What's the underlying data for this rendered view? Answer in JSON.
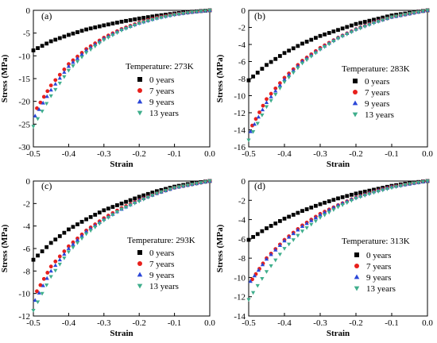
{
  "chart_data": [
    {
      "type": "scatter",
      "panel_label": "(a)",
      "annotation": "Temperature: 273K",
      "xlabel": "Strain",
      "ylabel": "Stress (MPa)",
      "xlim": [
        -0.5,
        0.0
      ],
      "ylim": [
        -30,
        0
      ],
      "xticks": [
        "-0.5",
        "-0.4",
        "-0.3",
        "-0.2",
        "-0.1",
        "0.0"
      ],
      "yticks": [
        "0",
        "-5",
        "-10",
        "-15",
        "-20",
        "-25",
        "-30"
      ],
      "series": [
        {
          "name": "0 years",
          "marker": "square",
          "color": "#000000",
          "x": [
            -0.5,
            -0.45,
            -0.4,
            -0.35,
            -0.3,
            -0.25,
            -0.2,
            -0.15,
            -0.1,
            -0.05,
            0.0
          ],
          "y": [
            -8.8,
            -6.8,
            -5.4,
            -4.2,
            -3.3,
            -2.5,
            -1.8,
            -1.2,
            -0.7,
            -0.3,
            0.0
          ]
        },
        {
          "name": "7 years",
          "marker": "circle",
          "color": "#e8201c",
          "x": [
            -0.49,
            -0.45,
            -0.4,
            -0.35,
            -0.3,
            -0.25,
            -0.2,
            -0.15,
            -0.1,
            -0.05,
            0.0
          ],
          "y": [
            -21.5,
            -16.5,
            -11.8,
            -8.5,
            -6.0,
            -4.1,
            -2.7,
            -1.6,
            -0.9,
            -0.4,
            0.0
          ]
        },
        {
          "name": "9 years",
          "marker": "triangle-up",
          "color": "#2b47d8",
          "x": [
            -0.495,
            -0.45,
            -0.4,
            -0.35,
            -0.3,
            -0.25,
            -0.2,
            -0.15,
            -0.1,
            -0.05,
            0.0
          ],
          "y": [
            -23.2,
            -17.5,
            -12.3,
            -8.8,
            -6.2,
            -4.2,
            -2.8,
            -1.7,
            -0.9,
            -0.4,
            0.0
          ]
        },
        {
          "name": "13 years",
          "marker": "triangle-down",
          "color": "#3fae8c",
          "x": [
            -0.5,
            -0.45,
            -0.4,
            -0.35,
            -0.3,
            -0.25,
            -0.2,
            -0.15,
            -0.1,
            -0.05,
            0.0
          ],
          "y": [
            -25.5,
            -18.8,
            -13.2,
            -9.3,
            -6.5,
            -4.4,
            -2.9,
            -1.8,
            -1.0,
            -0.4,
            0.0
          ]
        }
      ]
    },
    {
      "type": "scatter",
      "panel_label": "(b)",
      "annotation": "Temperature: 283K",
      "xlabel": "Strain",
      "ylabel": "Stress (MPa)",
      "xlim": [
        -0.5,
        0.0
      ],
      "ylim": [
        -16,
        0
      ],
      "xticks": [
        "-0.5",
        "-0.4",
        "-0.3",
        "-0.2",
        "-0.1",
        "0.0"
      ],
      "yticks": [
        "0",
        "-2",
        "-4",
        "-6",
        "-8",
        "-10",
        "-12",
        "-14",
        "-16"
      ],
      "series": [
        {
          "name": "0 years",
          "marker": "square",
          "color": "#000000",
          "x": [
            -0.5,
            -0.45,
            -0.4,
            -0.35,
            -0.3,
            -0.25,
            -0.2,
            -0.15,
            -0.1,
            -0.05,
            0.0
          ],
          "y": [
            -8.2,
            -6.4,
            -5.0,
            -3.9,
            -3.0,
            -2.3,
            -1.6,
            -1.1,
            -0.6,
            -0.3,
            0.0
          ]
        },
        {
          "name": "7 years",
          "marker": "circle",
          "color": "#e8201c",
          "x": [
            -0.49,
            -0.45,
            -0.4,
            -0.35,
            -0.3,
            -0.25,
            -0.2,
            -0.15,
            -0.1,
            -0.05,
            0.0
          ],
          "y": [
            -13.5,
            -10.4,
            -7.9,
            -5.9,
            -4.4,
            -3.2,
            -2.2,
            -1.4,
            -0.8,
            -0.4,
            0.0
          ]
        },
        {
          "name": "9 years",
          "marker": "triangle-up",
          "color": "#2b47d8",
          "x": [
            -0.495,
            -0.45,
            -0.4,
            -0.35,
            -0.3,
            -0.25,
            -0.2,
            -0.15,
            -0.1,
            -0.05,
            0.0
          ],
          "y": [
            -14.2,
            -10.8,
            -8.1,
            -6.0,
            -4.5,
            -3.2,
            -2.2,
            -1.4,
            -0.8,
            -0.4,
            0.0
          ]
        },
        {
          "name": "13 years",
          "marker": "triangle-down",
          "color": "#3fae8c",
          "x": [
            -0.5,
            -0.45,
            -0.4,
            -0.35,
            -0.3,
            -0.25,
            -0.2,
            -0.15,
            -0.1,
            -0.05,
            0.0
          ],
          "y": [
            -15.2,
            -11.3,
            -8.4,
            -6.2,
            -4.6,
            -3.3,
            -2.3,
            -1.5,
            -0.8,
            -0.4,
            0.0
          ]
        }
      ]
    },
    {
      "type": "scatter",
      "panel_label": "(c)",
      "annotation": "Temperature: 293K",
      "xlabel": "Strain",
      "ylabel": "Stress (MPa)",
      "xlim": [
        -0.5,
        0.0
      ],
      "ylim": [
        -12,
        0
      ],
      "xticks": [
        "-0.5",
        "-0.4",
        "-0.3",
        "-0.2",
        "-0.1",
        "0.0"
      ],
      "yticks": [
        "0",
        "-2",
        "-4",
        "-6",
        "-8",
        "-10",
        "-12"
      ],
      "series": [
        {
          "name": "0 years",
          "marker": "square",
          "color": "#000000",
          "x": [
            -0.5,
            -0.45,
            -0.4,
            -0.35,
            -0.3,
            -0.25,
            -0.2,
            -0.15,
            -0.1,
            -0.05,
            0.0
          ],
          "y": [
            -7.0,
            -5.5,
            -4.3,
            -3.4,
            -2.6,
            -2.0,
            -1.4,
            -0.9,
            -0.5,
            -0.2,
            0.0
          ]
        },
        {
          "name": "7 years",
          "marker": "circle",
          "color": "#e8201c",
          "x": [
            -0.49,
            -0.45,
            -0.4,
            -0.35,
            -0.3,
            -0.25,
            -0.2,
            -0.15,
            -0.1,
            -0.05,
            0.0
          ],
          "y": [
            -9.8,
            -7.6,
            -5.8,
            -4.4,
            -3.3,
            -2.4,
            -1.7,
            -1.1,
            -0.6,
            -0.3,
            0.0
          ]
        },
        {
          "name": "9 years",
          "marker": "triangle-up",
          "color": "#2b47d8",
          "x": [
            -0.495,
            -0.45,
            -0.4,
            -0.35,
            -0.3,
            -0.25,
            -0.2,
            -0.15,
            -0.1,
            -0.05,
            0.0
          ],
          "y": [
            -10.6,
            -8.0,
            -6.0,
            -4.5,
            -3.4,
            -2.5,
            -1.7,
            -1.1,
            -0.6,
            -0.3,
            0.0
          ]
        },
        {
          "name": "13 years",
          "marker": "triangle-down",
          "color": "#3fae8c",
          "x": [
            -0.5,
            -0.45,
            -0.4,
            -0.35,
            -0.3,
            -0.25,
            -0.2,
            -0.15,
            -0.1,
            -0.05,
            0.0
          ],
          "y": [
            -11.5,
            -8.5,
            -6.3,
            -4.7,
            -3.5,
            -2.5,
            -1.8,
            -1.1,
            -0.6,
            -0.3,
            0.0
          ]
        }
      ]
    },
    {
      "type": "scatter",
      "panel_label": "(d)",
      "annotation": "Temperature: 313K",
      "xlabel": "Strain",
      "ylabel": "Stress (MPa)",
      "xlim": [
        -0.5,
        0.0
      ],
      "ylim": [
        -14,
        0
      ],
      "xticks": [
        "-0.5",
        "-0.4",
        "-0.3",
        "-0.2",
        "-0.1",
        "0.0"
      ],
      "yticks": [
        "0",
        "-2",
        "-4",
        "-6",
        "-8",
        "-10",
        "-12",
        "-14"
      ],
      "series": [
        {
          "name": "0 years",
          "marker": "square",
          "color": "#000000",
          "x": [
            -0.5,
            -0.45,
            -0.4,
            -0.35,
            -0.3,
            -0.25,
            -0.2,
            -0.15,
            -0.1,
            -0.05,
            0.0
          ],
          "y": [
            -6.1,
            -4.9,
            -3.9,
            -3.1,
            -2.4,
            -1.8,
            -1.3,
            -0.9,
            -0.5,
            -0.2,
            0.0
          ]
        },
        {
          "name": "7 years",
          "marker": "circle",
          "color": "#e8201c",
          "x": [
            -0.49,
            -0.45,
            -0.4,
            -0.35,
            -0.3,
            -0.25,
            -0.2,
            -0.15,
            -0.1,
            -0.05,
            0.0
          ],
          "y": [
            -10.2,
            -8.0,
            -6.1,
            -4.6,
            -3.4,
            -2.5,
            -1.7,
            -1.1,
            -0.6,
            -0.3,
            0.0
          ]
        },
        {
          "name": "9 years",
          "marker": "triangle-up",
          "color": "#2b47d8",
          "x": [
            -0.495,
            -0.45,
            -0.4,
            -0.35,
            -0.3,
            -0.25,
            -0.2,
            -0.15,
            -0.1,
            -0.05,
            0.0
          ],
          "y": [
            -10.4,
            -8.1,
            -6.2,
            -4.7,
            -3.5,
            -2.5,
            -1.7,
            -1.1,
            -0.6,
            -0.3,
            0.0
          ]
        },
        {
          "name": "13 years",
          "marker": "triangle-down",
          "color": "#3fae8c",
          "x": [
            -0.5,
            -0.45,
            -0.4,
            -0.35,
            -0.3,
            -0.25,
            -0.2,
            -0.15,
            -0.1,
            -0.05,
            0.0
          ],
          "y": [
            -12.3,
            -9.4,
            -7.0,
            -5.2,
            -3.8,
            -2.7,
            -1.8,
            -1.2,
            -0.7,
            -0.3,
            0.0
          ]
        }
      ]
    }
  ]
}
